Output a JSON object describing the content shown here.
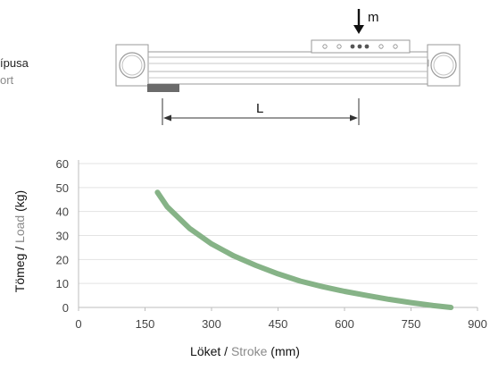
{
  "side_text": {
    "line1": "ípusa",
    "line2": "ort"
  },
  "diagram": {
    "mass_label": "m",
    "length_label": "L"
  },
  "chart_data": {
    "type": "line",
    "title": "",
    "xlabel_main": "Löket",
    "xlabel_sep": " / ",
    "xlabel_en": "Stroke",
    "xlabel_unit": " (mm)",
    "ylabel_main": "Tömeg",
    "ylabel_sep": " / ",
    "ylabel_en": "Load",
    "ylabel_unit": " (kg)",
    "xlim": [
      0,
      900
    ],
    "ylim": [
      0,
      60
    ],
    "xticks": [
      0,
      150,
      300,
      450,
      600,
      750,
      900
    ],
    "yticks": [
      0,
      10,
      20,
      30,
      40,
      50,
      60
    ],
    "grid": "horizontal",
    "legend": "none",
    "series": [
      {
        "color": "#86b387",
        "x": [
          178,
          200,
          250,
          300,
          350,
          400,
          450,
          500,
          550,
          600,
          650,
          700,
          750,
          800,
          840
        ],
        "y": [
          48,
          42,
          33,
          26.5,
          21.5,
          17.5,
          14,
          11,
          8.7,
          6.7,
          5,
          3.4,
          2,
          0.8,
          0
        ]
      }
    ]
  }
}
